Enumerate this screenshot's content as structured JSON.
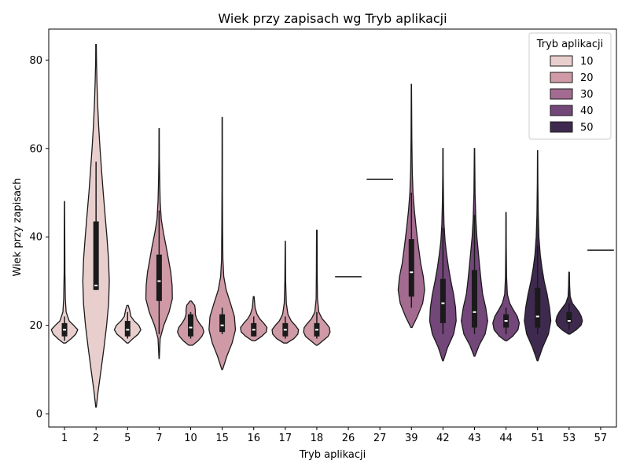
{
  "chart_data": {
    "type": "violin",
    "title": "Wiek przy zapisach wg Tryb aplikacji",
    "xlabel": "Tryb aplikacji",
    "ylabel": "Wiek przy zapisach",
    "ylim": [
      -3,
      87
    ],
    "yticks": [
      0,
      20,
      40,
      60,
      80
    ],
    "grid": false,
    "legend": {
      "title": "Tryb aplikacji",
      "placement": "top-right",
      "entries": [
        {
          "label": "10",
          "color": "#e8cfcd"
        },
        {
          "label": "20",
          "color": "#cf9aa6"
        },
        {
          "label": "30",
          "color": "#a46b90"
        },
        {
          "label": "40",
          "color": "#734779"
        },
        {
          "label": "50",
          "color": "#3f2a4f"
        }
      ]
    },
    "series": [
      {
        "category": "1",
        "color": "#e8cfcd",
        "min": 16,
        "max": 48,
        "q1": 17.5,
        "median": 19,
        "q3": 20.5,
        "whisker_low": 16.5,
        "whisker_high": 22,
        "density": [
          [
            16,
            0.08
          ],
          [
            17,
            0.5
          ],
          [
            18,
            0.85
          ],
          [
            19,
            1.0
          ],
          [
            20,
            0.7
          ],
          [
            21,
            0.35
          ],
          [
            23,
            0.12
          ],
          [
            26,
            0.06
          ],
          [
            32,
            0.03
          ],
          [
            40,
            0.02
          ],
          [
            48,
            0.01
          ]
        ]
      },
      {
        "category": "2",
        "color": "#e8cfcd",
        "min": 1.5,
        "max": 83.5,
        "q1": 28,
        "median": 29,
        "q3": 43.5,
        "whisker_low": 28,
        "whisker_high": 57,
        "density": [
          [
            1.5,
            0.02
          ],
          [
            5,
            0.15
          ],
          [
            10,
            0.38
          ],
          [
            15,
            0.6
          ],
          [
            20,
            0.8
          ],
          [
            25,
            0.95
          ],
          [
            30,
            1.0
          ],
          [
            35,
            0.94
          ],
          [
            40,
            0.82
          ],
          [
            45,
            0.68
          ],
          [
            50,
            0.54
          ],
          [
            55,
            0.42
          ],
          [
            60,
            0.3
          ],
          [
            65,
            0.2
          ],
          [
            70,
            0.12
          ],
          [
            75,
            0.07
          ],
          [
            80,
            0.03
          ],
          [
            83.5,
            0.02
          ]
        ]
      },
      {
        "category": "5",
        "color": "#e8cfcd",
        "min": 16,
        "max": 24.5,
        "q1": 17.5,
        "median": 19,
        "q3": 21,
        "whisker_low": 17,
        "whisker_high": 23,
        "density": [
          [
            16,
            0.05
          ],
          [
            17,
            0.4
          ],
          [
            18,
            0.8
          ],
          [
            19,
            1.0
          ],
          [
            20,
            0.85
          ],
          [
            21,
            0.5
          ],
          [
            22,
            0.25
          ],
          [
            23.5,
            0.15
          ],
          [
            24.5,
            0.05
          ]
        ]
      },
      {
        "category": "7",
        "color": "#cf9aa6",
        "min": 12.5,
        "max": 64.5,
        "q1": 25.5,
        "median": 30,
        "q3": 36,
        "whisker_low": 18,
        "whisker_high": 46,
        "density": [
          [
            12.5,
            0.01
          ],
          [
            17,
            0.08
          ],
          [
            20,
            0.35
          ],
          [
            23,
            0.75
          ],
          [
            26,
            1.0
          ],
          [
            29,
            0.98
          ],
          [
            32,
            0.88
          ],
          [
            35,
            0.7
          ],
          [
            38,
            0.52
          ],
          [
            41,
            0.32
          ],
          [
            44,
            0.16
          ],
          [
            48,
            0.08
          ],
          [
            53,
            0.04
          ],
          [
            58,
            0.02
          ],
          [
            64.5,
            0.01
          ]
        ]
      },
      {
        "category": "10",
        "color": "#cf9aa6",
        "min": 15.5,
        "max": 25.5,
        "q1": 17.5,
        "median": 19.5,
        "q3": 22.5,
        "whisker_low": 17,
        "whisker_high": 23,
        "density": [
          [
            15.5,
            0.15
          ],
          [
            16.5,
            0.55
          ],
          [
            17.5,
            0.85
          ],
          [
            18.5,
            1.0
          ],
          [
            19.5,
            0.9
          ],
          [
            20.5,
            0.65
          ],
          [
            21.5,
            0.45
          ],
          [
            22.5,
            0.35
          ],
          [
            23.5,
            0.35
          ],
          [
            24.5,
            0.3
          ],
          [
            25.5,
            0.05
          ]
        ]
      },
      {
        "category": "15",
        "color": "#cf9aa6",
        "min": 10,
        "max": 67,
        "q1": 18.5,
        "median": 20,
        "q3": 22.5,
        "whisker_low": 18,
        "whisker_high": 24,
        "density": [
          [
            10,
            0.03
          ],
          [
            13,
            0.35
          ],
          [
            16,
            0.75
          ],
          [
            19,
            1.0
          ],
          [
            22,
            0.92
          ],
          [
            25,
            0.62
          ],
          [
            28,
            0.3
          ],
          [
            31,
            0.12
          ],
          [
            35,
            0.05
          ],
          [
            42,
            0.03
          ],
          [
            50,
            0.02
          ],
          [
            58,
            0.015
          ],
          [
            67,
            0.01
          ]
        ]
      },
      {
        "category": "16",
        "color": "#cf9aa6",
        "min": 16.5,
        "max": 26.5,
        "q1": 17.5,
        "median": 19,
        "q3": 20.5,
        "whisker_low": 17.5,
        "whisker_high": 22,
        "density": [
          [
            16.5,
            0.1
          ],
          [
            17.5,
            0.6
          ],
          [
            18.5,
            0.95
          ],
          [
            19.5,
            1.0
          ],
          [
            20.5,
            0.75
          ],
          [
            21.5,
            0.45
          ],
          [
            22.5,
            0.25
          ],
          [
            24,
            0.1
          ],
          [
            26.5,
            0.03
          ]
        ]
      },
      {
        "category": "17",
        "color": "#cf9aa6",
        "min": 16,
        "max": 39,
        "q1": 17.5,
        "median": 19,
        "q3": 20.5,
        "whisker_low": 17,
        "whisker_high": 22,
        "density": [
          [
            16,
            0.12
          ],
          [
            17,
            0.65
          ],
          [
            18,
            0.95
          ],
          [
            19,
            1.0
          ],
          [
            20,
            0.75
          ],
          [
            21,
            0.45
          ],
          [
            22.5,
            0.2
          ],
          [
            25,
            0.08
          ],
          [
            30,
            0.03
          ],
          [
            39,
            0.01
          ]
        ]
      },
      {
        "category": "18",
        "color": "#cf9aa6",
        "min": 15.5,
        "max": 41.5,
        "q1": 17.5,
        "median": 19,
        "q3": 20.5,
        "whisker_low": 17,
        "whisker_high": 23,
        "density": [
          [
            15.5,
            0.05
          ],
          [
            16.5,
            0.45
          ],
          [
            17.5,
            0.85
          ],
          [
            18.5,
            1.0
          ],
          [
            19.5,
            0.95
          ],
          [
            20.5,
            0.7
          ],
          [
            21.5,
            0.4
          ],
          [
            23,
            0.15
          ],
          [
            26,
            0.05
          ],
          [
            32,
            0.03
          ],
          [
            41.5,
            0.02
          ]
        ]
      },
      {
        "category": "26",
        "color": "#cf9aa6",
        "min": 31,
        "max": 31,
        "single_value": 31
      },
      {
        "category": "27",
        "color": "#cf9aa6",
        "min": 53,
        "max": 53,
        "single_value": 53
      },
      {
        "category": "39",
        "color": "#a46b90",
        "min": 19.5,
        "max": 74.5,
        "q1": 26.5,
        "median": 32,
        "q3": 39.5,
        "whisker_low": 24,
        "whisker_high": 50,
        "density": [
          [
            19.5,
            0.04
          ],
          [
            22,
            0.45
          ],
          [
            25,
            0.85
          ],
          [
            28,
            1.0
          ],
          [
            31,
            0.9
          ],
          [
            34,
            0.7
          ],
          [
            38,
            0.52
          ],
          [
            42,
            0.36
          ],
          [
            46,
            0.22
          ],
          [
            50,
            0.12
          ],
          [
            55,
            0.06
          ],
          [
            62,
            0.03
          ],
          [
            74.5,
            0.01
          ]
        ]
      },
      {
        "category": "42",
        "color": "#734779",
        "min": 12,
        "max": 60,
        "q1": 20.5,
        "median": 25,
        "q3": 30.5,
        "whisker_low": 18,
        "whisker_high": 42,
        "density": [
          [
            12,
            0.03
          ],
          [
            15,
            0.35
          ],
          [
            18,
            0.8
          ],
          [
            21,
            1.0
          ],
          [
            24,
            0.95
          ],
          [
            27,
            0.8
          ],
          [
            30,
            0.6
          ],
          [
            33,
            0.42
          ],
          [
            36,
            0.28
          ],
          [
            39,
            0.16
          ],
          [
            43,
            0.08
          ],
          [
            48,
            0.04
          ],
          [
            54,
            0.02
          ],
          [
            60,
            0.01
          ]
        ]
      },
      {
        "category": "43",
        "color": "#734779",
        "min": 13,
        "max": 60,
        "q1": 19.5,
        "median": 23,
        "q3": 32.5,
        "whisker_low": 18,
        "whisker_high": 45,
        "density": [
          [
            13,
            0.03
          ],
          [
            15.5,
            0.35
          ],
          [
            18,
            0.8
          ],
          [
            21,
            1.0
          ],
          [
            24,
            0.85
          ],
          [
            27,
            0.62
          ],
          [
            30,
            0.5
          ],
          [
            33,
            0.4
          ],
          [
            36,
            0.3
          ],
          [
            40,
            0.18
          ],
          [
            44,
            0.1
          ],
          [
            50,
            0.04
          ],
          [
            60,
            0.01
          ]
        ]
      },
      {
        "category": "44",
        "color": "#734779",
        "min": 16.5,
        "max": 45.5,
        "q1": 19.5,
        "median": 21,
        "q3": 22.5,
        "whisker_low": 18,
        "whisker_high": 24,
        "density": [
          [
            16.5,
            0.05
          ],
          [
            17.5,
            0.5
          ],
          [
            19,
            0.9
          ],
          [
            20.5,
            1.0
          ],
          [
            22,
            0.85
          ],
          [
            23.5,
            0.55
          ],
          [
            25,
            0.28
          ],
          [
            27,
            0.1
          ],
          [
            31,
            0.04
          ],
          [
            38,
            0.02
          ],
          [
            45.5,
            0.01
          ]
        ]
      },
      {
        "category": "51",
        "color": "#3f2a4f",
        "min": 12,
        "max": 59.5,
        "q1": 19.5,
        "median": 22,
        "q3": 28.5,
        "whisker_low": 18,
        "whisker_high": 38,
        "density": [
          [
            12,
            0.03
          ],
          [
            15,
            0.38
          ],
          [
            18,
            0.82
          ],
          [
            21,
            1.0
          ],
          [
            24,
            0.9
          ],
          [
            27,
            0.72
          ],
          [
            30,
            0.5
          ],
          [
            33,
            0.33
          ],
          [
            36,
            0.2
          ],
          [
            40,
            0.1
          ],
          [
            45,
            0.05
          ],
          [
            52,
            0.02
          ],
          [
            59.5,
            0.01
          ]
        ]
      },
      {
        "category": "53",
        "color": "#3f2a4f",
        "min": 18,
        "max": 32,
        "q1": 20.5,
        "median": 21,
        "q3": 23,
        "whisker_low": 19,
        "whisker_high": 25,
        "density": [
          [
            18,
            0.05
          ],
          [
            19,
            0.55
          ],
          [
            20,
            0.9
          ],
          [
            21,
            1.0
          ],
          [
            22,
            0.92
          ],
          [
            23,
            0.75
          ],
          [
            24,
            0.5
          ],
          [
            25,
            0.25
          ],
          [
            26.5,
            0.08
          ],
          [
            29,
            0.04
          ],
          [
            32,
            0.02
          ]
        ]
      },
      {
        "category": "57",
        "color": "#3f2a4f",
        "min": 37,
        "max": 37,
        "single_value": 37
      }
    ]
  }
}
